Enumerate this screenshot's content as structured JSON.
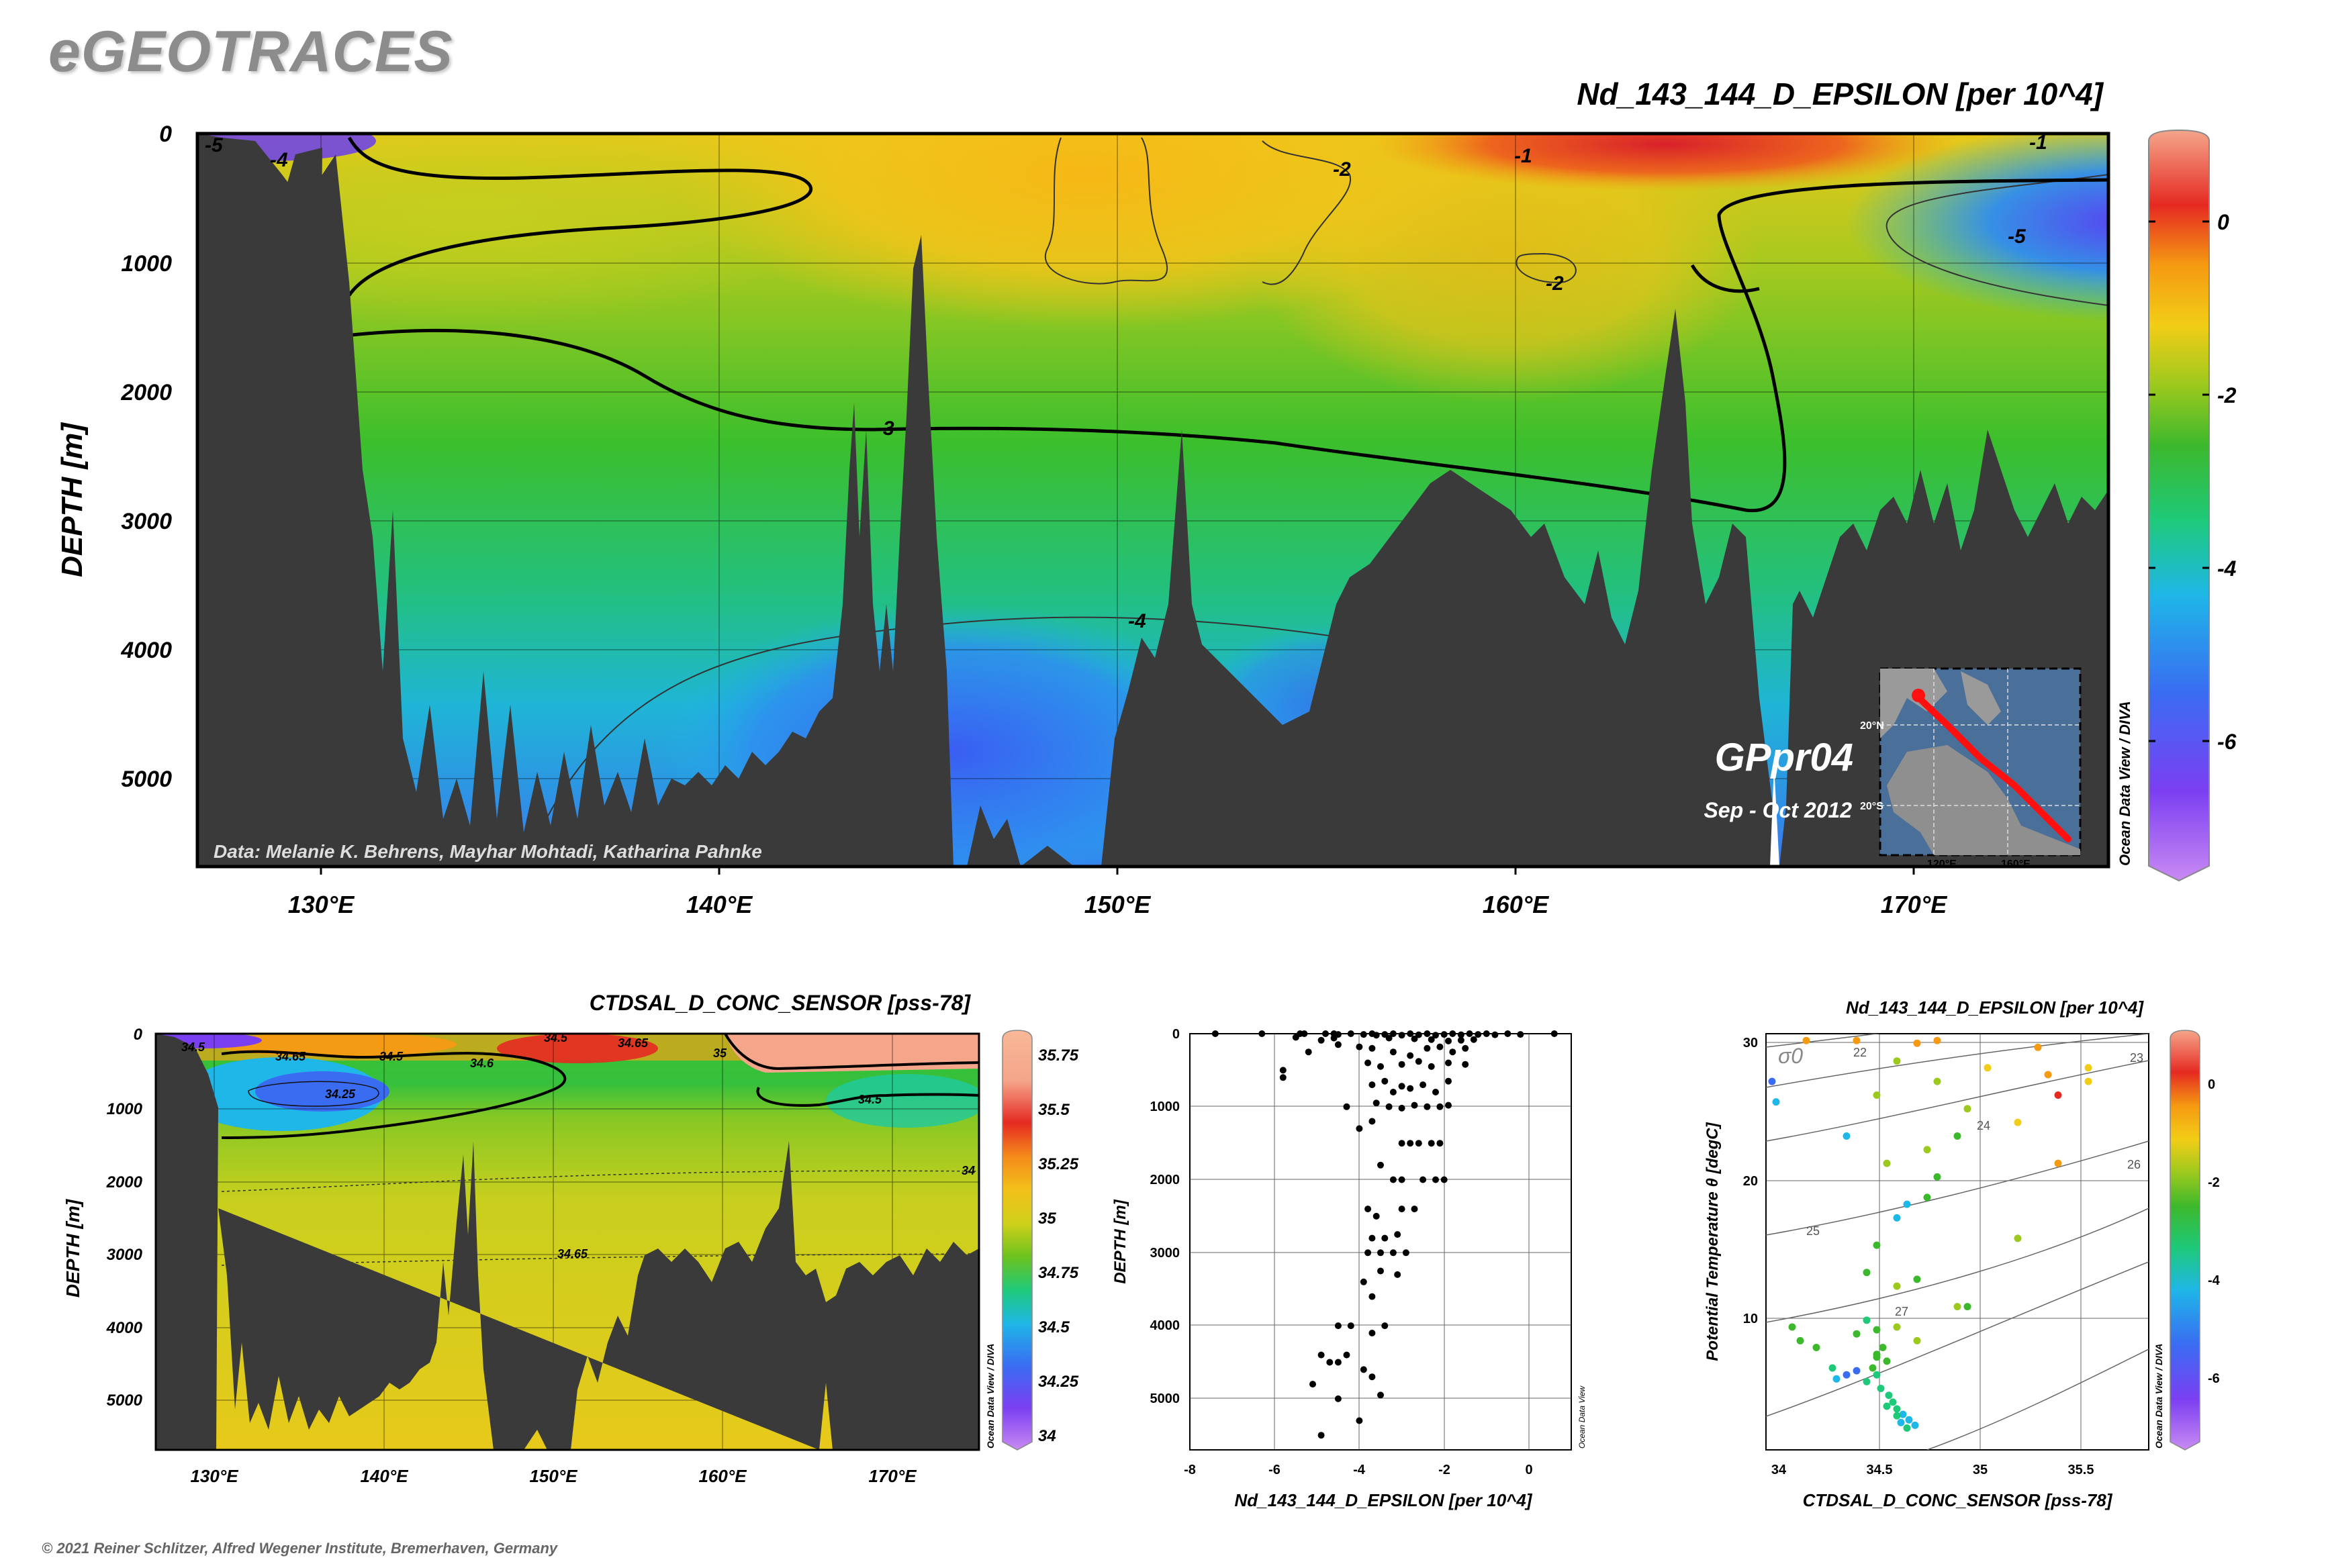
{
  "header": {
    "brand": "eGEOTRACES",
    "footer": "© 2021 Reiner Schlitzer, Alfred Wegener Institute, Bremerhaven, Germany",
    "odv_credit": "Ocean Data View / DIVA",
    "odv_credit_short": "Ocean Data View"
  },
  "colors": {
    "land": "#3a3a3a",
    "palette_nd": [
      "#c98af2",
      "#7b3ff2",
      "#3a6cf2",
      "#1fb6e8",
      "#1ec97a",
      "#3cb82c",
      "#9cc91e",
      "#f2cd16",
      "#f59a12",
      "#e52a22",
      "#f5a58a"
    ],
    "palette_sal": [
      "#c98af2",
      "#7b3ff2",
      "#3a6cf2",
      "#1fb6e8",
      "#1ec97a",
      "#6cc21e",
      "#cfd01a",
      "#f2c019",
      "#f58a1a",
      "#e52a22",
      "#f5a58a"
    ]
  },
  "chart_data": [
    {
      "type": "heatmap",
      "title": "Nd_143_144_D_EPSILON [per 10^4]",
      "ylabel": "DEPTH [m]",
      "x_ticks": [
        "130°E",
        "140°E",
        "150°E",
        "160°E",
        "170°E"
      ],
      "x_tick_values": [
        130,
        140,
        150,
        160,
        170
      ],
      "xlim": [
        126.5,
        174.5
      ],
      "y_ticks": [
        0,
        1000,
        2000,
        3000,
        4000,
        5000
      ],
      "ylim": [
        5700,
        0
      ],
      "colorbar_ticks": [
        0,
        -2,
        -4,
        -6
      ],
      "colorbar_range": [
        -7.5,
        1
      ],
      "contour_labels": [
        "-5",
        "-4",
        "-2",
        "-1",
        "-1",
        "-2",
        "-5",
        "-3",
        "-4",
        "-2"
      ],
      "section_label": "GPpr04",
      "date_label": "Sep - Oct 2012",
      "data_credit": "Data: Melanie K. Behrens, Mayhar Mohtadi, Katharina Pahnke",
      "inset_map": {
        "lat_labels": [
          "20°N",
          "20°S"
        ],
        "lon_labels": [
          "120°E",
          "160°E"
        ],
        "credit": "Ocean Data View"
      }
    },
    {
      "type": "heatmap",
      "title": "CTDSAL_D_CONC_SENSOR [pss-78]",
      "ylabel": "DEPTH [m]",
      "x_ticks": [
        "130°E",
        "140°E",
        "150°E",
        "160°E",
        "170°E"
      ],
      "x_tick_values": [
        130,
        140,
        150,
        160,
        170
      ],
      "xlim": [
        126.5,
        174.5
      ],
      "y_ticks": [
        0,
        1000,
        2000,
        3000,
        4000,
        5000
      ],
      "ylim": [
        5700,
        0
      ],
      "colorbar_ticks": [
        35.75,
        35.5,
        35.25,
        35,
        34.75,
        34.5,
        34.25,
        34
      ],
      "colorbar_range": [
        33.9,
        35.9
      ],
      "contour_labels": [
        "34.5",
        "34.65",
        "34.5",
        "34.6",
        "34.5",
        "34.65",
        "35",
        "34.25",
        "34.5",
        "34",
        "34.65"
      ]
    },
    {
      "type": "scatter",
      "xlabel": "Nd_143_144_D_EPSILON [per 10^4]",
      "ylabel": "DEPTH [m]",
      "x_ticks": [
        -8,
        -6,
        -4,
        -2,
        0
      ],
      "xlim": [
        -8,
        1
      ],
      "y_ticks": [
        0,
        1000,
        2000,
        3000,
        4000,
        5000
      ],
      "ylim": [
        5700,
        0
      ],
      "points": [
        [
          -7.4,
          0
        ],
        [
          -6.3,
          0
        ],
        [
          -5.4,
          0
        ],
        [
          -5.3,
          0
        ],
        [
          -4.8,
          0
        ],
        [
          -4.6,
          0
        ],
        [
          -4.5,
          10
        ],
        [
          -4.2,
          0
        ],
        [
          -3.9,
          10
        ],
        [
          -3.7,
          0
        ],
        [
          -3.6,
          20
        ],
        [
          -3.4,
          10
        ],
        [
          -3.2,
          0
        ],
        [
          -3.0,
          20
        ],
        [
          -2.8,
          0
        ],
        [
          -2.6,
          15
        ],
        [
          -2.4,
          0
        ],
        [
          -2.2,
          20
        ],
        [
          -2.0,
          10
        ],
        [
          -1.8,
          0
        ],
        [
          -1.6,
          15
        ],
        [
          -1.4,
          0
        ],
        [
          -1.2,
          10
        ],
        [
          -1.0,
          0
        ],
        [
          -0.8,
          15
        ],
        [
          -0.5,
          0
        ],
        [
          -0.2,
          10
        ],
        [
          0.6,
          0
        ],
        [
          -5.5,
          50
        ],
        [
          -4.9,
          90
        ],
        [
          -4.6,
          60
        ],
        [
          -3.3,
          60
        ],
        [
          -2.7,
          70
        ],
        [
          -2.3,
          80
        ],
        [
          -1.9,
          100
        ],
        [
          -1.6,
          90
        ],
        [
          -1.3,
          80
        ],
        [
          -5.2,
          250
        ],
        [
          -5.8,
          500
        ],
        [
          -5.8,
          600
        ],
        [
          -4.5,
          150
        ],
        [
          -4.0,
          180
        ],
        [
          -3.7,
          200
        ],
        [
          -3.2,
          250
        ],
        [
          -2.8,
          300
        ],
        [
          -2.4,
          200
        ],
        [
          -2.1,
          180
        ],
        [
          -1.8,
          250
        ],
        [
          -1.5,
          200
        ],
        [
          -3.8,
          400
        ],
        [
          -3.5,
          450
        ],
        [
          -3.0,
          420
        ],
        [
          -2.6,
          380
        ],
        [
          -2.3,
          450
        ],
        [
          -1.9,
          400
        ],
        [
          -1.5,
          420
        ],
        [
          -3.7,
          700
        ],
        [
          -3.4,
          650
        ],
        [
          -3.2,
          800
        ],
        [
          -3.0,
          720
        ],
        [
          -2.8,
          750
        ],
        [
          -2.5,
          700
        ],
        [
          -2.2,
          800
        ],
        [
          -1.9,
          650
        ],
        [
          -4.3,
          1000
        ],
        [
          -3.6,
          950
        ],
        [
          -3.3,
          1000
        ],
        [
          -3.0,
          1020
        ],
        [
          -2.7,
          980
        ],
        [
          -2.4,
          1000
        ],
        [
          -2.1,
          1000
        ],
        [
          -1.9,
          980
        ],
        [
          -4.0,
          1300
        ],
        [
          -3.7,
          1200
        ],
        [
          -3.0,
          1500
        ],
        [
          -2.8,
          1500
        ],
        [
          -2.6,
          1500
        ],
        [
          -2.3,
          1500
        ],
        [
          -2.1,
          1500
        ],
        [
          -3.5,
          1800
        ],
        [
          -3.2,
          2000
        ],
        [
          -3.0,
          2000
        ],
        [
          -2.5,
          2000
        ],
        [
          -2.2,
          2000
        ],
        [
          -2.0,
          2000
        ],
        [
          -3.8,
          2400
        ],
        [
          -3.6,
          2500
        ],
        [
          -3.0,
          2400
        ],
        [
          -2.7,
          2400
        ],
        [
          -3.7,
          2800
        ],
        [
          -3.4,
          2800
        ],
        [
          -3.1,
          2750
        ],
        [
          -3.8,
          3000
        ],
        [
          -3.5,
          3000
        ],
        [
          -3.2,
          3000
        ],
        [
          -2.9,
          3000
        ],
        [
          -3.5,
          3250
        ],
        [
          -3.1,
          3300
        ],
        [
          -3.9,
          3400
        ],
        [
          -3.7,
          3600
        ],
        [
          -4.5,
          4000
        ],
        [
          -4.2,
          4000
        ],
        [
          -3.4,
          4000
        ],
        [
          -3.7,
          4100
        ],
        [
          -4.9,
          4400
        ],
        [
          -4.7,
          4500
        ],
        [
          -4.5,
          4500
        ],
        [
          -4.3,
          4400
        ],
        [
          -3.9,
          4600
        ],
        [
          -3.7,
          4700
        ],
        [
          -5.1,
          4800
        ],
        [
          -4.5,
          5000
        ],
        [
          -3.5,
          4950
        ],
        [
          -4.0,
          5300
        ],
        [
          -4.9,
          5500
        ]
      ]
    },
    {
      "type": "scatter",
      "title": "Nd_143_144_D_EPSILON [per 10^4]",
      "xlabel": "CTDSAL_D_CONC_SENSOR [pss-78]",
      "ylabel": "Potential Temperature θ [degC]",
      "x_ticks": [
        34,
        34.5,
        35,
        35.5
      ],
      "xlim": [
        33.95,
        35.85
      ],
      "y_ticks": [
        10,
        20,
        30
      ],
      "ylim": [
        0,
        30.5
      ],
      "sigma_label": "σ0",
      "isopycnal_labels": [
        22,
        23,
        24,
        25,
        26,
        27
      ],
      "colorbar_ticks": [
        0,
        -2,
        -4,
        -6
      ],
      "colorbar_range": [
        -7.5,
        1
      ],
      "points": [
        [
          34.15,
          30,
          -0.7
        ],
        [
          34.4,
          30,
          -0.9
        ],
        [
          34.7,
          29.8,
          -1.2
        ],
        [
          34.8,
          30,
          -1.0
        ],
        [
          35.3,
          29.5,
          -0.8
        ],
        [
          35.55,
          28,
          -1.4
        ],
        [
          35.55,
          27,
          -1.7
        ],
        [
          35.4,
          26,
          -0.5
        ],
        [
          35.35,
          27.5,
          -0.6
        ],
        [
          35.05,
          28,
          -1.8
        ],
        [
          34.6,
          28.5,
          -2.2
        ],
        [
          34.8,
          27,
          -2.1
        ],
        [
          35.2,
          24,
          -1.9
        ],
        [
          34.95,
          25,
          -2.2
        ],
        [
          34.5,
          26,
          -2.4
        ],
        [
          34.0,
          25.5,
          -4.8
        ],
        [
          33.98,
          27,
          -5.5
        ],
        [
          34.35,
          23,
          -4.5
        ],
        [
          34.55,
          21,
          -2.6
        ],
        [
          34.75,
          22,
          -2.8
        ],
        [
          34.9,
          23,
          -3.0
        ],
        [
          35.4,
          21,
          -0.9
        ],
        [
          35.2,
          15.5,
          -2.2
        ],
        [
          34.8,
          20,
          -3.2
        ],
        [
          34.75,
          18.5,
          -3.5
        ],
        [
          34.65,
          18,
          -4.6
        ],
        [
          34.6,
          17,
          -4.7
        ],
        [
          34.5,
          15,
          -3.0
        ],
        [
          34.45,
          13,
          -3.2
        ],
        [
          34.6,
          12,
          -2.8
        ],
        [
          34.7,
          12.5,
          -3.1
        ],
        [
          34.9,
          10.5,
          -2.3
        ],
        [
          34.95,
          10.5,
          -3.0
        ],
        [
          34.6,
          9,
          -2.2
        ],
        [
          34.7,
          8,
          -2.6
        ],
        [
          34.5,
          7,
          -3.0
        ],
        [
          34.55,
          6.5,
          -3.4
        ],
        [
          34.48,
          6,
          -3.6
        ],
        [
          34.5,
          5.5,
          -3.7
        ],
        [
          34.45,
          5,
          -3.9
        ],
        [
          34.52,
          4.5,
          -4.0
        ],
        [
          34.56,
          4,
          -4.2
        ],
        [
          34.58,
          3.5,
          -4.3
        ],
        [
          34.6,
          3,
          -4.4
        ],
        [
          34.63,
          2.6,
          -4.5
        ],
        [
          34.66,
          2.2,
          -4.6
        ],
        [
          34.69,
          1.8,
          -4.7
        ],
        [
          34.35,
          5.5,
          -5.3
        ],
        [
          34.3,
          5.2,
          -4.7
        ],
        [
          34.4,
          5.8,
          -5.2
        ],
        [
          34.28,
          6,
          -4.0
        ],
        [
          34.12,
          8,
          -3.5
        ],
        [
          34.2,
          7.5,
          -3.6
        ],
        [
          34.08,
          9,
          -3.4
        ],
        [
          34.4,
          8.5,
          -3.2
        ],
        [
          34.45,
          9.5,
          -3.8
        ],
        [
          34.5,
          8.8,
          -3.1
        ],
        [
          34.5,
          6.8,
          -2.9
        ],
        [
          34.53,
          7.5,
          -3.3
        ],
        [
          34.55,
          3.2,
          -4.0
        ],
        [
          34.6,
          2.5,
          -4.1
        ],
        [
          34.62,
          2.0,
          -4.5
        ],
        [
          34.65,
          1.6,
          -4.3
        ]
      ]
    }
  ]
}
